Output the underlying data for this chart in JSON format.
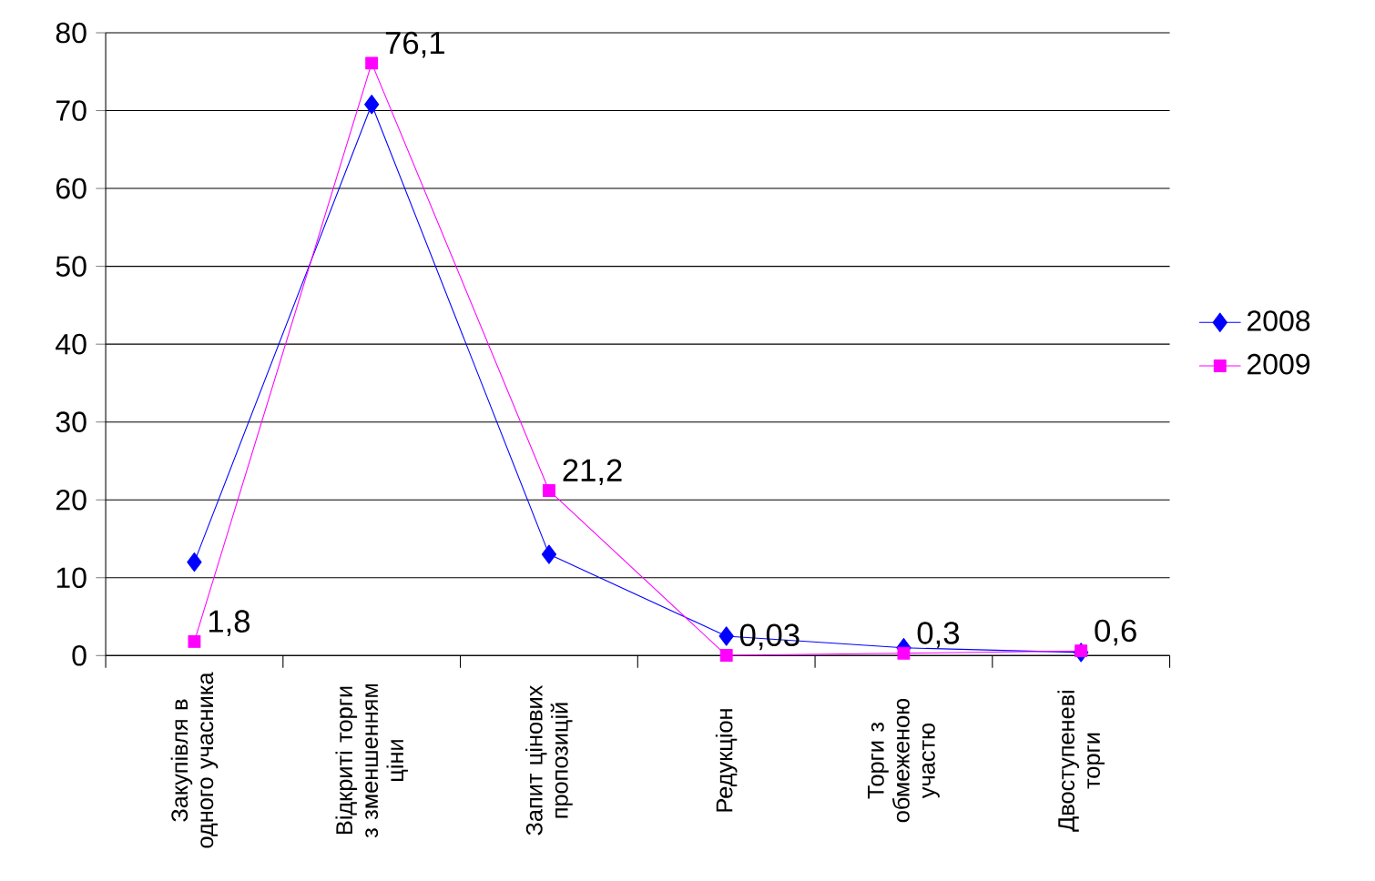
{
  "chart_data": {
    "type": "line",
    "categories": [
      "Закупівля в одного учасника",
      "Відкриті торги з зменшенням ціни",
      "Запит цінових пропозицій",
      "Редукціон",
      "Торги з обмеженою участю",
      "Двоступеневі торги"
    ],
    "series": [
      {
        "name": "2008",
        "color": "#0000ff",
        "marker": "diamond",
        "values": [
          12,
          70.8,
          13,
          2.5,
          1,
          0.4
        ]
      },
      {
        "name": "2009",
        "color": "#ff00ff",
        "marker": "square",
        "values": [
          1.8,
          76.1,
          21.2,
          0.03,
          0.3,
          0.6
        ],
        "value_labels": [
          "1,8",
          "76,1",
          "21,2",
          "0,03",
          "0,3",
          "0,6"
        ]
      }
    ],
    "ylim": [
      0,
      80
    ],
    "yticks": [
      0,
      10,
      20,
      30,
      40,
      50,
      60,
      70,
      80
    ],
    "grid": "y",
    "legend": "right"
  }
}
